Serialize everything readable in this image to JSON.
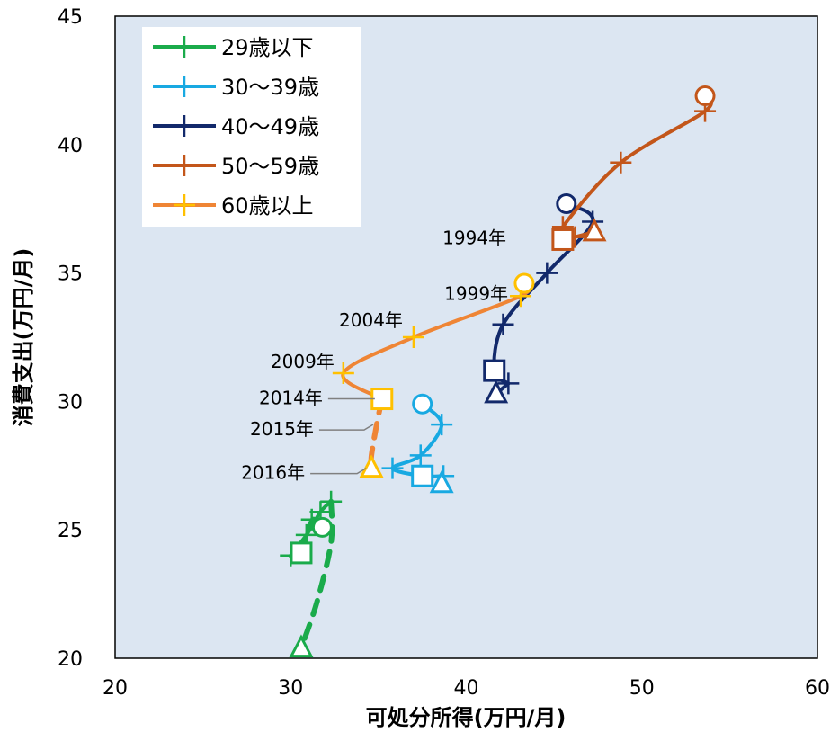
{
  "chart_data": {
    "type": "line",
    "xlabel": "可処分所得(万円/月)",
    "ylabel": "消費支出(万円/月)",
    "xlim": [
      20,
      60
    ],
    "ylim": [
      20,
      45
    ],
    "x_ticks": [
      "20",
      "30",
      "40",
      "50",
      "60"
    ],
    "y_ticks": [
      "20",
      "25",
      "30",
      "35",
      "40",
      "45"
    ],
    "grid": false,
    "legend": "top-left",
    "marker_meaning": {
      "circle": "1994年",
      "square": "2014年",
      "triangle": "2016年"
    },
    "series": [
      {
        "name": "29歳以下",
        "color": "#1aab4b",
        "points": [
          [
            31.8,
            25.1
          ],
          [
            31.2,
            25.4
          ],
          [
            30.6,
            24.1
          ],
          [
            30.0,
            24.0
          ],
          [
            30.9,
            24.8
          ],
          [
            31.7,
            25.7
          ],
          [
            32.3,
            26.1
          ]
        ],
        "dashed_points": [
          [
            32.3,
            26.1
          ],
          [
            32.3,
            24.5
          ],
          [
            31.5,
            22.2
          ],
          [
            30.6,
            20.4
          ]
        ]
      },
      {
        "name": "30〜39歳",
        "color": "#18a9e2",
        "points": [
          [
            37.5,
            29.9
          ],
          [
            38.6,
            29.1
          ],
          [
            37.4,
            27.9
          ],
          [
            35.8,
            27.4
          ],
          [
            37.5,
            27.1
          ],
          [
            38.7,
            27.1
          ]
        ],
        "end_points": [
          [
            38.6,
            26.8
          ]
        ]
      },
      {
        "name": "40〜49歳",
        "color": "#12296b",
        "points": [
          [
            45.7,
            37.7
          ],
          [
            47.2,
            37.0
          ],
          [
            44.6,
            35.0
          ],
          [
            42.1,
            33.0
          ],
          [
            41.6,
            31.2
          ],
          [
            42.4,
            30.7
          ]
        ],
        "end_points": [
          [
            41.7,
            30.3
          ]
        ]
      },
      {
        "name": "50〜59歳",
        "color": "#c3561a",
        "points": [
          [
            53.6,
            41.9
          ],
          [
            53.6,
            41.3
          ],
          [
            48.8,
            39.3
          ],
          [
            45.5,
            36.8
          ],
          [
            45.5,
            36.3
          ],
          [
            46.2,
            36.4
          ]
        ],
        "end_points": [
          [
            47.3,
            36.6
          ]
        ]
      },
      {
        "name": "60歳以上",
        "color": "#ef8535",
        "points": [
          [
            43.3,
            34.6
          ],
          [
            43.1,
            34.1
          ],
          [
            37.0,
            32.5
          ],
          [
            33.0,
            31.1
          ],
          [
            35.2,
            30.1
          ]
        ],
        "point_color": "#ffc000",
        "dashed_points": [
          [
            35.2,
            30.1
          ],
          [
            34.9,
            29.1
          ],
          [
            34.6,
            27.9
          ],
          [
            34.6,
            27.4
          ]
        ]
      }
    ],
    "annotations": [
      {
        "text": "1994年",
        "x": 43.0,
        "y": 35.5
      },
      {
        "text": "1999年",
        "x": 43.0,
        "y": 34.1
      },
      {
        "text": "2004年",
        "x": 37.0,
        "y": 32.5
      },
      {
        "text": "2009年",
        "x": 33.0,
        "y": 31.1
      },
      {
        "text": "2014年",
        "x": 35.0,
        "y": 30.1
      },
      {
        "text": "2015年",
        "x": 34.9,
        "y": 29.1
      },
      {
        "text": "2016年",
        "x": 34.5,
        "y": 27.4
      }
    ]
  }
}
